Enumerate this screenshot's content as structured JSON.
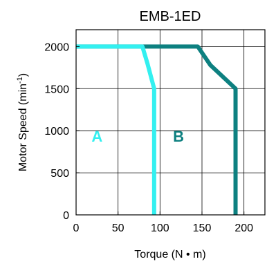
{
  "chart_data": {
    "type": "line",
    "title": "EMB-1ED",
    "xlabel": "Torque (N • m)",
    "ylabel": "Motor  Speed (min-1)",
    "ylabel_main": "Motor  Speed (min",
    "ylabel_sup": "-1",
    "ylabel_close": ")",
    "xlim": [
      0,
      225
    ],
    "ylim": [
      0,
      2200
    ],
    "xticks": [
      0,
      50,
      100,
      150,
      200
    ],
    "yticks": [
      0,
      500,
      1000,
      1500,
      2000
    ],
    "xtick_labels": [
      "0",
      "50",
      "100",
      "150",
      "200"
    ],
    "ytick_labels": [
      "0",
      "500",
      "1000",
      "1500",
      "2000"
    ],
    "grid": true,
    "series": [
      {
        "name": "A",
        "color": "#33f0f0",
        "points": [
          [
            0,
            2000
          ],
          [
            72,
            2000
          ],
          [
            79,
            2000
          ],
          [
            85,
            1800
          ],
          [
            93,
            1500
          ],
          [
            93,
            0
          ]
        ]
      },
      {
        "name": "B",
        "color": "#0d8080",
        "points": [
          [
            0,
            2000
          ],
          [
            71,
            2000
          ],
          [
            145,
            2000
          ],
          [
            160,
            1780
          ],
          [
            190,
            1500
          ],
          [
            190,
            0
          ]
        ]
      }
    ],
    "annotations": [
      {
        "text": "A",
        "x": 25,
        "y": 870,
        "color": "#33f0f0"
      },
      {
        "text": "B",
        "x": 122,
        "y": 870,
        "color": "#0d8080"
      }
    ]
  }
}
